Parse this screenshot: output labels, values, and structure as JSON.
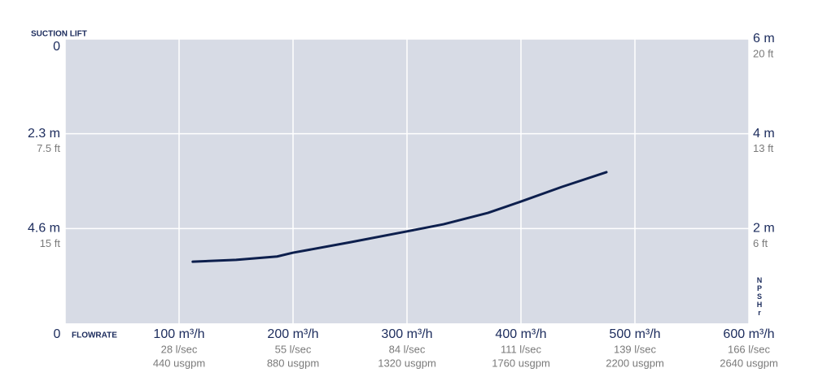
{
  "chart_data": {
    "type": "line",
    "title": "SUCTION LIFT",
    "xlabel": "FLOWRATE",
    "y2label": "NPSHr",
    "xlim": [
      0,
      600
    ],
    "xticks": [
      {
        "value": 0,
        "label": "0"
      },
      {
        "value": 100,
        "label": "100 m³/h",
        "sublabels": [
          "28 l/sec",
          "440 usgpm"
        ]
      },
      {
        "value": 200,
        "label": "200 m³/h",
        "sublabels": [
          "55 l/sec",
          "880 usgpm"
        ]
      },
      {
        "value": 300,
        "label": "300 m³/h",
        "sublabels": [
          "84 l/sec",
          "1320 usgpm"
        ]
      },
      {
        "value": 400,
        "label": "400 m³/h",
        "sublabels": [
          "111 l/sec",
          "1760 usgpm"
        ]
      },
      {
        "value": 500,
        "label": "500 m³/h",
        "sublabels": [
          "139 l/sec",
          "2200 usgpm"
        ]
      },
      {
        "value": 600,
        "label": "600 m³/h",
        "sublabels": [
          "166 l/sec",
          "2640 usgpm"
        ]
      }
    ],
    "ylim": [
      6.9,
      0
    ],
    "yticks": [
      0,
      {
        "value": 2.3,
        "label": "2.3 m",
        "sublabel": "7.5 ft"
      },
      {
        "value": 4.6,
        "label": "4.6 m",
        "sublabel": "15 ft"
      }
    ],
    "y2lim": [
      0,
      6
    ],
    "y2ticks": [
      {
        "value": 2,
        "label": "2 m",
        "sublabel": "6 ft"
      },
      {
        "value": 4,
        "label": "4 m",
        "sublabel": "13 ft"
      },
      {
        "value": 6,
        "label": "6 m",
        "sublabel": "20 ft"
      }
    ],
    "grid": true,
    "x": [
      112,
      150,
      186,
      200,
      250,
      300,
      332,
      371,
      400,
      436,
      475
    ],
    "series": [
      {
        "color": "#0d1f4d",
        "axis": "y2",
        "values": [
          1.3,
          1.34,
          1.41,
          1.49,
          1.71,
          1.94,
          2.09,
          2.33,
          2.57,
          2.88,
          3.19
        ]
      }
    ]
  }
}
